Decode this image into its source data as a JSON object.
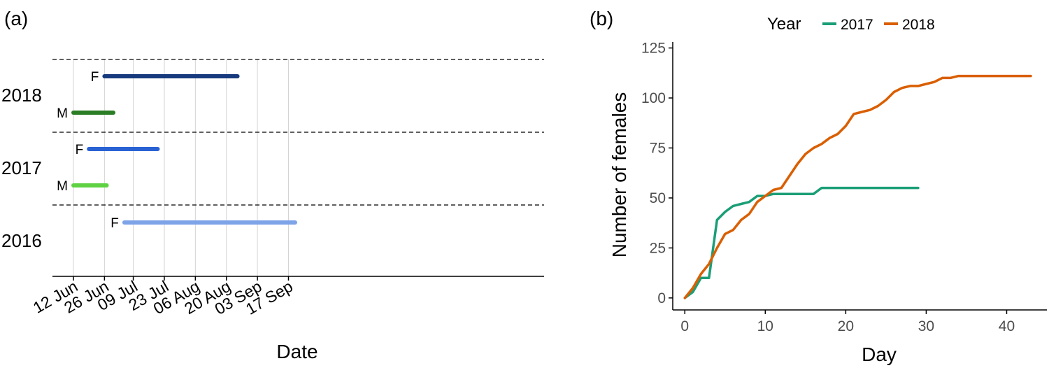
{
  "chart_data": [
    {
      "panel": "(a)",
      "type": "bar",
      "orientation": "horizontal",
      "xlabel": "Date",
      "ylabel": "",
      "x_ticks": [
        "12 Jun",
        "26 Jun",
        "09 Jul",
        "23 Jul",
        "06 Aug",
        "20 Aug",
        "03 Sep",
        "17 Sep"
      ],
      "grid": "vertical",
      "years": [
        {
          "year": "2018",
          "bars": [
            {
              "sex": "F",
              "start": "2018-06-26",
              "end": "2018-08-25",
              "color": "#163a7d"
            },
            {
              "sex": "M",
              "start": "2018-06-12",
              "end": "2018-06-30",
              "color": "#2b7d26"
            }
          ]
        },
        {
          "year": "2017",
          "bars": [
            {
              "sex": "F",
              "start": "2017-06-19",
              "end": "2017-07-20",
              "color": "#2a62d4"
            },
            {
              "sex": "M",
              "start": "2017-06-12",
              "end": "2017-06-27",
              "color": "#5fd243"
            }
          ]
        },
        {
          "year": "2016",
          "bars": [
            {
              "sex": "F",
              "start": "2016-07-05",
              "end": "2016-09-20",
              "color": "#7ea4e8"
            }
          ]
        }
      ]
    },
    {
      "panel": "(b)",
      "type": "line",
      "xlabel": "Day",
      "ylabel": "Number of females",
      "xlim": [
        -1.5,
        45
      ],
      "ylim": [
        -6,
        128
      ],
      "x_ticks": [
        0,
        10,
        20,
        30,
        40
      ],
      "y_ticks": [
        0,
        25,
        50,
        75,
        100,
        125
      ],
      "legend_title": "Year",
      "legend_position": "top",
      "grid": "off",
      "series": [
        {
          "name": "2017",
          "color": "#1b9e77",
          "x": [
            0,
            1,
            2,
            3,
            4,
            5,
            6,
            7,
            8,
            9,
            10,
            11,
            12,
            13,
            14,
            15,
            16,
            17,
            29
          ],
          "y": [
            0,
            3,
            10,
            10,
            39,
            43,
            46,
            47,
            48,
            51,
            51,
            52,
            52,
            52,
            52,
            52,
            52,
            55,
            55
          ]
        },
        {
          "name": "2018",
          "color": "#d95f02",
          "x": [
            0,
            1,
            2,
            3,
            4,
            5,
            6,
            7,
            8,
            9,
            10,
            11,
            12,
            13,
            14,
            15,
            16,
            17,
            18,
            19,
            20,
            21,
            22,
            23,
            24,
            25,
            26,
            27,
            28,
            29,
            30,
            31,
            32,
            33,
            34,
            43
          ],
          "y": [
            0,
            5,
            12,
            17,
            25,
            32,
            34,
            39,
            42,
            48,
            51,
            54,
            55,
            61,
            67,
            72,
            75,
            77,
            80,
            82,
            86,
            92,
            93,
            94,
            96,
            99,
            103,
            105,
            106,
            106,
            107,
            108,
            110,
            110,
            111,
            111
          ]
        }
      ]
    }
  ]
}
